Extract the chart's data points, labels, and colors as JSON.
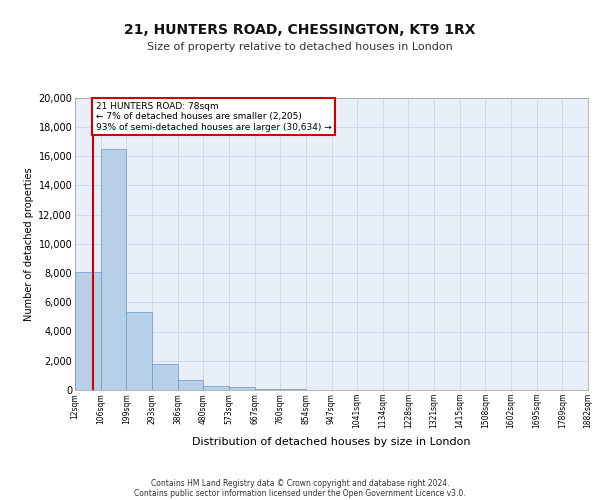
{
  "title1": "21, HUNTERS ROAD, CHESSINGTON, KT9 1RX",
  "title2": "Size of property relative to detached houses in London",
  "xlabel": "Distribution of detached houses by size in London",
  "ylabel": "Number of detached properties",
  "bin_labels": [
    "12sqm",
    "106sqm",
    "199sqm",
    "293sqm",
    "386sqm",
    "480sqm",
    "573sqm",
    "667sqm",
    "760sqm",
    "854sqm",
    "947sqm",
    "1041sqm",
    "1134sqm",
    "1228sqm",
    "1321sqm",
    "1415sqm",
    "1508sqm",
    "1602sqm",
    "1695sqm",
    "1789sqm",
    "1882sqm"
  ],
  "bar_heights": [
    8100,
    16500,
    5300,
    1800,
    700,
    300,
    200,
    100,
    50,
    0,
    0,
    0,
    0,
    0,
    0,
    0,
    0,
    0,
    0,
    0
  ],
  "bar_color": "#b8cfe8",
  "bar_edge_color": "#6699cc",
  "grid_color": "#c8d8ec",
  "background_color": "#e8eff8",
  "property_line_x": 0.72,
  "annotation_line1": "21 HUNTERS ROAD: 78sqm",
  "annotation_line2": "← 7% of detached houses are smaller (2,205)",
  "annotation_line3": "93% of semi-detached houses are larger (30,634) →",
  "annotation_box_facecolor": "#ffffff",
  "annotation_box_edgecolor": "#cc0000",
  "red_line_color": "#cc0000",
  "footer_line1": "Contains HM Land Registry data © Crown copyright and database right 2024.",
  "footer_line2": "Contains public sector information licensed under the Open Government Licence v3.0.",
  "ylim": [
    0,
    20000
  ],
  "yticks": [
    0,
    2000,
    4000,
    6000,
    8000,
    10000,
    12000,
    14000,
    16000,
    18000,
    20000
  ]
}
